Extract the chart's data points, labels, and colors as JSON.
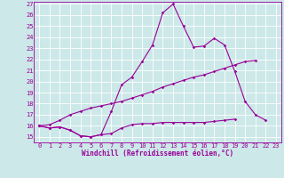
{
  "xlabel": "Windchill (Refroidissement éolien,°C)",
  "x": [
    0,
    1,
    2,
    3,
    4,
    5,
    6,
    7,
    8,
    9,
    10,
    11,
    12,
    13,
    14,
    15,
    16,
    17,
    18,
    19,
    20,
    21,
    22,
    23
  ],
  "line1": [
    16.0,
    15.8,
    15.9,
    15.6,
    15.1,
    15.0,
    15.2,
    17.3,
    19.7,
    20.4,
    21.8,
    23.3,
    26.2,
    27.0,
    25.0,
    23.1,
    23.2,
    23.9,
    23.3,
    20.9,
    18.2,
    17.0,
    16.5,
    null
  ],
  "line2": [
    16.0,
    15.8,
    15.9,
    15.6,
    15.1,
    15.0,
    15.2,
    15.3,
    15.8,
    16.1,
    16.2,
    16.2,
    16.3,
    16.3,
    16.3,
    16.3,
    16.3,
    16.4,
    16.5,
    16.6,
    null,
    null,
    null,
    null
  ],
  "line3": [
    16.0,
    16.1,
    16.5,
    17.0,
    17.3,
    17.6,
    17.8,
    18.0,
    18.2,
    18.5,
    18.8,
    19.1,
    19.5,
    19.8,
    20.1,
    20.4,
    20.6,
    20.9,
    21.2,
    21.5,
    21.8,
    21.9,
    null,
    null
  ],
  "ylim": [
    15,
    27
  ],
  "xlim": [
    -0.5,
    23.5
  ],
  "yticks": [
    15,
    16,
    17,
    18,
    19,
    20,
    21,
    22,
    23,
    24,
    25,
    26,
    27
  ],
  "xticks": [
    0,
    1,
    2,
    3,
    4,
    5,
    6,
    7,
    8,
    9,
    10,
    11,
    12,
    13,
    14,
    15,
    16,
    17,
    18,
    19,
    20,
    21,
    22,
    23
  ],
  "color": "#990099",
  "bg_color": "#cce8e8",
  "grid_color": "#ffffff",
  "marker": "D",
  "marker_size": 1.8,
  "linewidth": 0.8,
  "tick_fontsize": 5.0,
  "xlabel_fontsize": 5.5
}
